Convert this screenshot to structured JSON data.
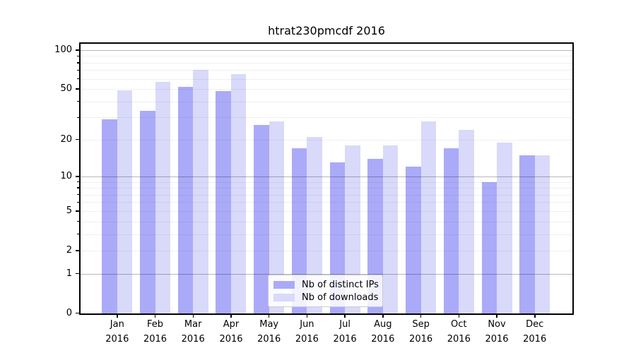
{
  "title": "htrat230pmcdf 2016",
  "legend": {
    "items": [
      {
        "label": "Nb of distinct IPs",
        "color": "#aaaaf9"
      },
      {
        "label": "Nb of downloads",
        "color": "#d9d9fa"
      }
    ]
  },
  "y_axis": {
    "tick_labels": [
      "0",
      "1",
      "2",
      "5",
      "10",
      "20",
      "50",
      "100"
    ]
  },
  "x_axis": {
    "months": [
      "Jan",
      "Feb",
      "Mar",
      "Apr",
      "May",
      "Jun",
      "Jul",
      "Aug",
      "Sep",
      "Oct",
      "Nov",
      "Dec"
    ],
    "year": "2016"
  },
  "chart_data": {
    "type": "bar",
    "title": "htrat230pmcdf 2016",
    "categories": [
      "Jan 2016",
      "Feb 2016",
      "Mar 2016",
      "Apr 2016",
      "May 2016",
      "Jun 2016",
      "Jul 2016",
      "Aug 2016",
      "Sep 2016",
      "Oct 2016",
      "Nov 2016",
      "Dec 2016"
    ],
    "series": [
      {
        "name": "Nb of distinct IPs",
        "color": "#aaaaf9",
        "values": [
          29,
          34,
          52,
          48,
          26,
          17,
          13,
          14,
          12,
          17,
          9,
          15
        ]
      },
      {
        "name": "Nb of downloads",
        "color": "#d9d9fa",
        "values": [
          49,
          57,
          70,
          65,
          28,
          21,
          18,
          18,
          28,
          24,
          19,
          15
        ]
      }
    ],
    "xlabel": "",
    "ylabel": "",
    "yscale": "log1p",
    "ylim": [
      0,
      114
    ],
    "yticks": [
      0,
      1,
      2,
      5,
      10,
      20,
      50,
      100
    ],
    "major_gridlines": [
      1,
      10,
      100
    ],
    "minor_gridlines": [
      2,
      3,
      4,
      5,
      6,
      7,
      8,
      9,
      20,
      30,
      40,
      50,
      60,
      70,
      80,
      90
    ],
    "grid": "horizontal",
    "legend_position": "lower center"
  }
}
